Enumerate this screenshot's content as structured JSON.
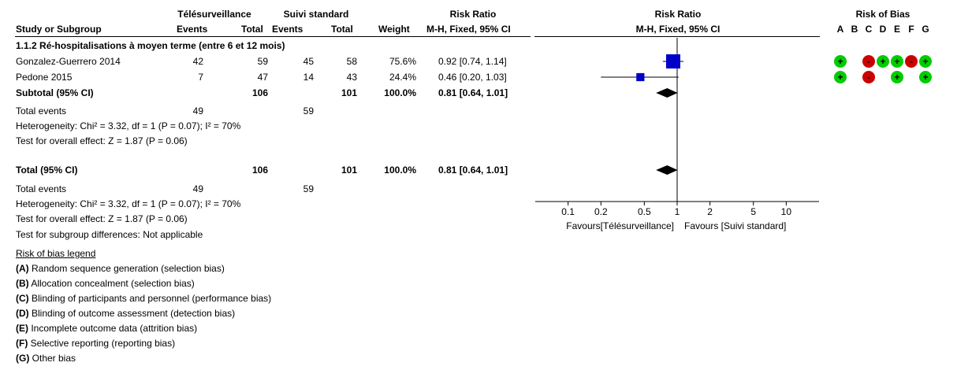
{
  "header": {
    "group_exp": "Télésurveillance",
    "group_ctrl": "Suivi standard",
    "col_risk_ratio": "Risk Ratio",
    "col_plot_title": "Risk Ratio",
    "col_rob": "Risk of Bias",
    "study_label": "Study or Subgroup",
    "events": "Events",
    "total": "Total",
    "weight": "Weight",
    "method": "M-H, Fixed, 95% CI",
    "plot_method": "M-H, Fixed, 95% CI",
    "rob_letters": [
      "A",
      "B",
      "C",
      "D",
      "E",
      "F",
      "G"
    ]
  },
  "subgroup": {
    "title": "1.1.2 Ré-hospitalisations à moyen terme (entre 6 et 12 mois)",
    "subtotal": {
      "label": "Subtotal (95% CI)",
      "exp_total": "106",
      "ctrl_total": "101",
      "weight": "100.0%",
      "ci": "0.81 [0.64, 1.01]"
    },
    "total_events": {
      "label": "Total events",
      "exp": "49",
      "ctrl": "59"
    },
    "heterogeneity": "Heterogeneity: Chi² = 3.32, df = 1 (P = 0.07); I² = 70%",
    "overall": "Test for overall effect: Z = 1.87 (P = 0.06)"
  },
  "total": {
    "label": "Total (95% CI)",
    "exp_total": "106",
    "ctrl_total": "101",
    "weight": "100.0%",
    "ci": "0.81 [0.64, 1.01]",
    "total_events": {
      "label": "Total events",
      "exp": "49",
      "ctrl": "59"
    },
    "heterogeneity": "Heterogeneity: Chi² = 3.32, df = 1 (P = 0.07); I² = 70%",
    "overall": "Test for overall effect: Z = 1.87 (P = 0.06)",
    "subgroup_diff": "Test for subgroup differences: Not applicable"
  },
  "legend": {
    "title": "Risk of bias legend",
    "items": [
      {
        "letter": "(A)",
        "text": " Random sequence generation (selection bias)"
      },
      {
        "letter": "(B)",
        "text": " Allocation concealment (selection bias)"
      },
      {
        "letter": "(C)",
        "text": " Blinding of participants and personnel (performance bias)"
      },
      {
        "letter": "(D)",
        "text": " Blinding of outcome assessment (detection bias)"
      },
      {
        "letter": "(E)",
        "text": " Incomplete outcome data (attrition bias)"
      },
      {
        "letter": "(F)",
        "text": " Selective reporting (reporting bias)"
      },
      {
        "letter": "(G)",
        "text": " Other bias"
      }
    ]
  },
  "colors": {
    "square": "#0000c8",
    "low_risk": "#00cc00",
    "high_risk": "#cc0000"
  },
  "chart_data": {
    "type": "forest",
    "x_scale": "log",
    "xlim": [
      0.05,
      20
    ],
    "ticks": [
      0.1,
      0.2,
      0.5,
      1,
      2,
      5,
      10
    ],
    "tick_labels": [
      "0.1",
      "0.2",
      "0.5",
      "1",
      "2",
      "5",
      "10"
    ],
    "favours_left": "Favours[Télésurveillance]",
    "favours_right": "Favours [Suivi standard]",
    "studies": [
      {
        "name": "Gonzalez-Guerrero 2014",
        "exp_events": "42",
        "exp_total": "59",
        "ctrl_events": "45",
        "ctrl_total": "58",
        "weight": "75.6%",
        "ci_text": "0.92 [0.74, 1.14]",
        "rr": 0.92,
        "lo": 0.74,
        "hi": 1.14,
        "weight_pct": 75.6,
        "rob": [
          "+",
          "",
          "-",
          "+",
          "+",
          "-",
          "+"
        ]
      },
      {
        "name": "Pedone 2015",
        "exp_events": "7",
        "exp_total": "47",
        "ctrl_events": "14",
        "ctrl_total": "43",
        "weight": "24.4%",
        "ci_text": "0.46 [0.20, 1.03]",
        "rr": 0.46,
        "lo": 0.2,
        "hi": 1.03,
        "weight_pct": 24.4,
        "rob": [
          "+",
          "",
          "-",
          "",
          "+",
          "",
          "+"
        ]
      }
    ],
    "pooled": [
      {
        "label": "Subtotal",
        "rr": 0.81,
        "lo": 0.64,
        "hi": 1.01
      },
      {
        "label": "Total",
        "rr": 0.81,
        "lo": 0.64,
        "hi": 1.01
      }
    ]
  }
}
